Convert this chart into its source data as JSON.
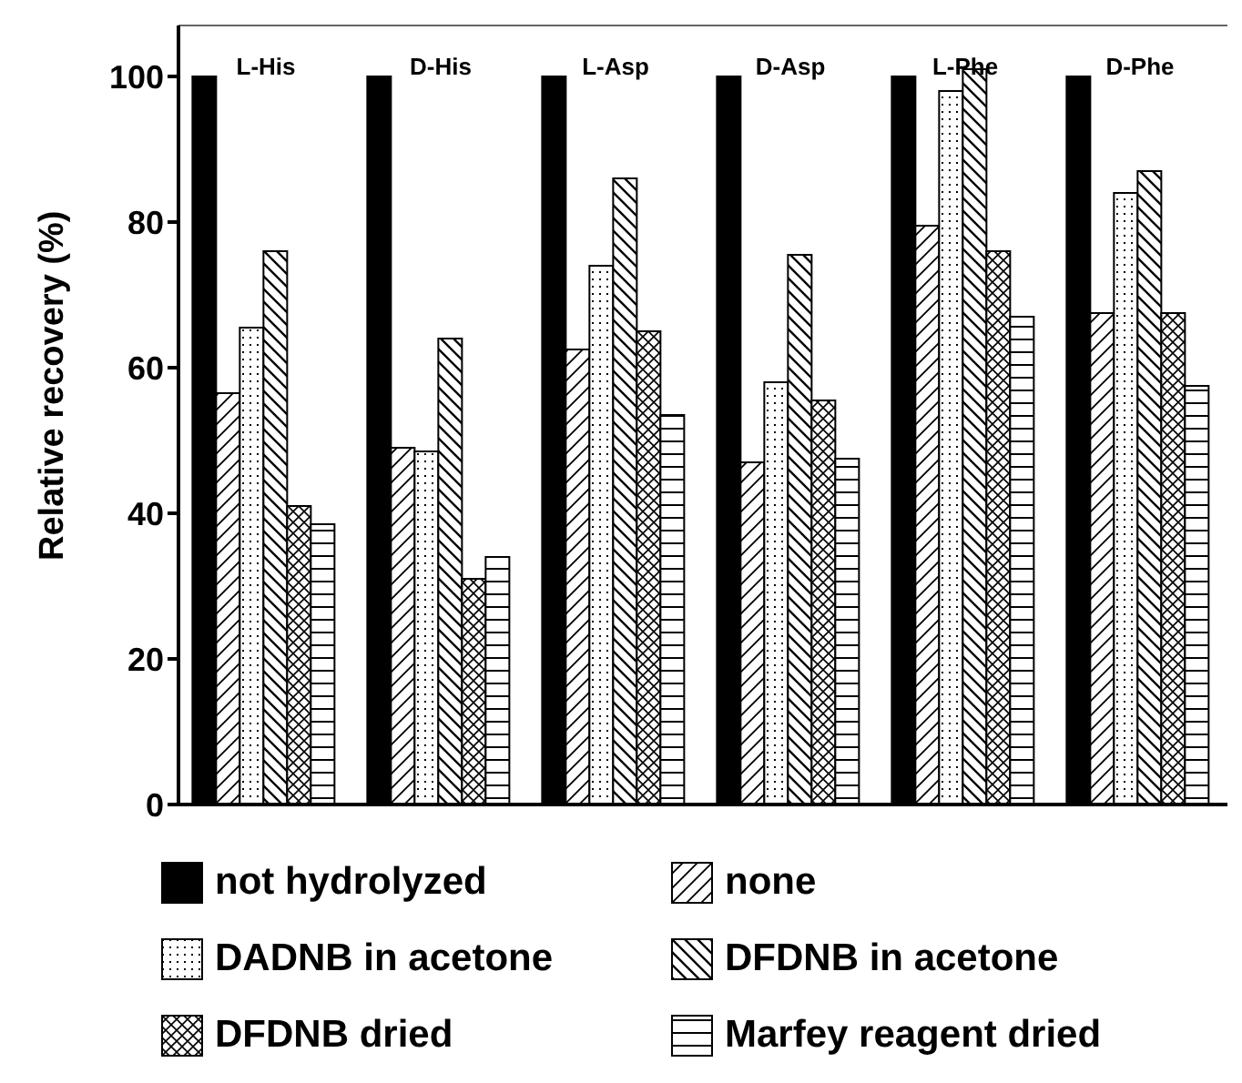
{
  "chart_data": {
    "type": "bar",
    "ylabel": "Relative recovery (%)",
    "categories": [
      "L-His",
      "D-His",
      "L-Asp",
      "D-Asp",
      "L-Phe",
      "D-Phe"
    ],
    "series": [
      {
        "name": "not hydrolyzed",
        "color": "#000000",
        "values": [
          100,
          100,
          100,
          100,
          100,
          100
        ]
      },
      {
        "name": "none",
        "color": "#000000",
        "values": [
          56.5,
          49,
          62.5,
          47,
          79.5,
          67.5
        ]
      },
      {
        "name": "DADNB in acetone",
        "color": "#000000",
        "values": [
          65.5,
          48.5,
          74,
          58,
          98,
          84
        ]
      },
      {
        "name": "DFDNB in acetone",
        "color": "#000000",
        "values": [
          76,
          64,
          86,
          75.5,
          101,
          87
        ]
      },
      {
        "name": "DFDNB dried",
        "color": "#000000",
        "values": [
          41,
          31,
          65,
          55.5,
          76,
          67.5
        ]
      },
      {
        "name": "Marfey reagent dried",
        "color": "#000000",
        "values": [
          38.5,
          34,
          53.5,
          47.5,
          67,
          57.5
        ]
      }
    ],
    "ylim": [
      0,
      107
    ],
    "yticks": [
      0,
      20,
      40,
      60,
      80,
      100
    ],
    "grid": false,
    "legend": "bottom"
  }
}
